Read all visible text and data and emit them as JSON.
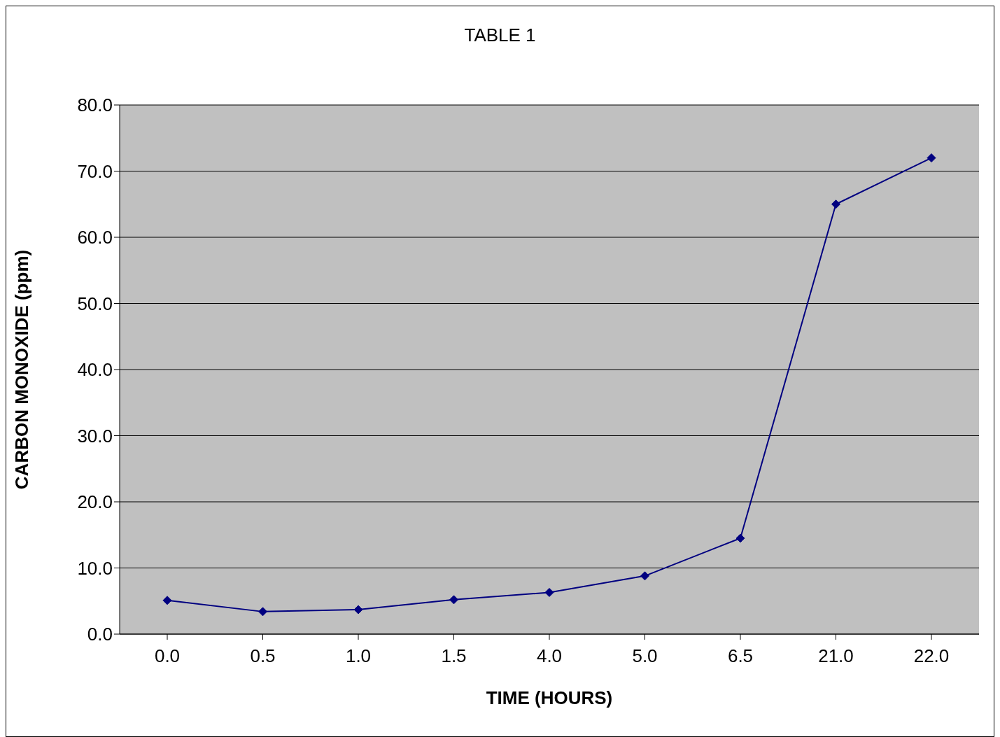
{
  "chart_data": {
    "type": "line",
    "title": "TABLE 1",
    "xlabel": "TIME (HOURS)",
    "ylabel": "CARBON MONOXIDE (ppm)",
    "categories": [
      "0.0",
      "0.5",
      "1.0",
      "1.5",
      "4.0",
      "5.0",
      "6.5",
      "21.0",
      "22.0"
    ],
    "series": [
      {
        "color": "#000080",
        "values": [
          5.1,
          3.4,
          3.7,
          5.2,
          6.3,
          8.8,
          14.5,
          65.0,
          72.0
        ]
      }
    ],
    "ylim": [
      0,
      80
    ],
    "yticks": [
      {
        "value": 0,
        "label": "0.0"
      },
      {
        "value": 10,
        "label": "10.0"
      },
      {
        "value": 20,
        "label": "20.0"
      },
      {
        "value": 30,
        "label": "30.0"
      },
      {
        "value": 40,
        "label": "40.0"
      },
      {
        "value": 50,
        "label": "50.0"
      },
      {
        "value": 60,
        "label": "60.0"
      },
      {
        "value": 70,
        "label": "70.0"
      },
      {
        "value": 80,
        "label": "80.0"
      }
    ],
    "grid": "y",
    "legend": false,
    "marker": "diamond",
    "line_style": "solid"
  }
}
